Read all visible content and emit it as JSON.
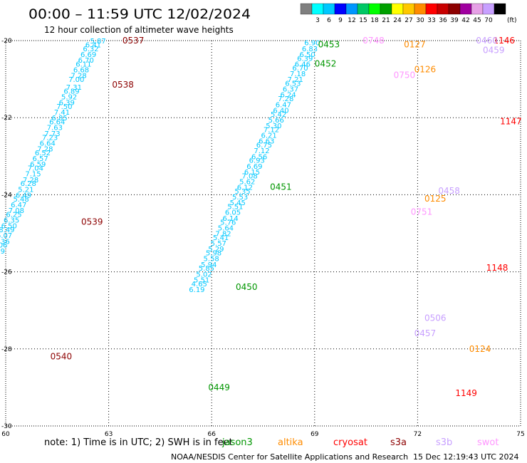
{
  "header": {
    "title": "00:00 – 11:59 UTC 12/02/2024",
    "subtitle": "12 hour collection of altimeter wave heights"
  },
  "colorbar": {
    "unit": "(ft)",
    "entries": [
      {
        "label": "",
        "color": "#7f7f7f"
      },
      {
        "label": "3",
        "color": "#00ffff"
      },
      {
        "label": "6",
        "color": "#00c8ff"
      },
      {
        "label": "9",
        "color": "#0000ff"
      },
      {
        "label": "12",
        "color": "#0096ff"
      },
      {
        "label": "15",
        "color": "#00c864"
      },
      {
        "label": "18",
        "color": "#00ff00"
      },
      {
        "label": "21",
        "color": "#00a000"
      },
      {
        "label": "24",
        "color": "#ffff00"
      },
      {
        "label": "27",
        "color": "#ffc800"
      },
      {
        "label": "30",
        "color": "#ff8c00"
      },
      {
        "label": "33",
        "color": "#ff0000"
      },
      {
        "label": "36",
        "color": "#c80000"
      },
      {
        "label": "39",
        "color": "#8c0000"
      },
      {
        "label": "42",
        "color": "#a000a0"
      },
      {
        "label": "45",
        "color": "#e6a0e6"
      },
      {
        "label": "70",
        "color": "#c8a0ff"
      },
      {
        "label": "",
        "color": "#000000"
      }
    ]
  },
  "footer": {
    "note": "note:  1) Time is in UTC; 2) SWH is in feet",
    "credit": "NOAA/NESDIS Center for Satellite Applications and Research",
    "timestamp": "15 Dec 12:19:43 UTC 2024",
    "satellites": [
      {
        "name": "jason3",
        "color": "#009600"
      },
      {
        "name": "altika",
        "color": "#ff8c00"
      },
      {
        "name": "cryosat",
        "color": "#ff0000"
      },
      {
        "name": "s3a",
        "color": "#8c0000"
      },
      {
        "name": "s3b",
        "color": "#c8a0ff"
      },
      {
        "name": "swot",
        "color": "#ff96ff"
      }
    ]
  },
  "chart_data": {
    "type": "scatter",
    "xlim": [
      60,
      75
    ],
    "ylim": [
      -30,
      -20
    ],
    "xticks": [
      60,
      63,
      66,
      69,
      72,
      75
    ],
    "xtick_labels": [
      "60",
      "63",
      "66",
      "69",
      "72",
      "75"
    ],
    "yticks": [
      -20,
      -22,
      -24,
      -26,
      -28,
      -30
    ],
    "ytick_labels": [
      "-20",
      "-22",
      "-24",
      "-26",
      "-28",
      "-30"
    ],
    "grid": true,
    "pass_labels": [
      {
        "text": "0537",
        "x": 63.4,
        "y": -20.0,
        "color": "#8c0000"
      },
      {
        "text": "0538",
        "x": 63.1,
        "y": -21.15,
        "color": "#8c0000"
      },
      {
        "text": "0539",
        "x": 62.2,
        "y": -24.7,
        "color": "#8c0000"
      },
      {
        "text": "0540",
        "x": 61.3,
        "y": -28.2,
        "color": "#8c0000"
      },
      {
        "text": "0449",
        "x": 65.9,
        "y": -29.0,
        "color": "#009600"
      },
      {
        "text": "0450",
        "x": 66.7,
        "y": -26.4,
        "color": "#009600"
      },
      {
        "text": "0451",
        "x": 67.7,
        "y": -23.8,
        "color": "#009600"
      },
      {
        "text": "0452",
        "x": 69.0,
        "y": -20.6,
        "color": "#009600"
      },
      {
        "text": "0453",
        "x": 69.1,
        "y": -20.1,
        "color": "#009600"
      },
      {
        "text": "0127",
        "x": 71.6,
        "y": -20.1,
        "color": "#ff8c00"
      },
      {
        "text": "0126",
        "x": 71.9,
        "y": -20.75,
        "color": "#ff8c00"
      },
      {
        "text": "0125",
        "x": 72.2,
        "y": -24.1,
        "color": "#ff8c00"
      },
      {
        "text": "0124",
        "x": 73.5,
        "y": -28.0,
        "color": "#ff8c00"
      },
      {
        "text": "1146",
        "x": 74.2,
        "y": -20.0,
        "color": "#ff0000"
      },
      {
        "text": "1147",
        "x": 74.4,
        "y": -22.1,
        "color": "#ff0000"
      },
      {
        "text": "1148",
        "x": 74.0,
        "y": -25.9,
        "color": "#ff0000"
      },
      {
        "text": "1149",
        "x": 73.1,
        "y": -29.15,
        "color": "#ff0000"
      },
      {
        "text": "0460",
        "x": 73.7,
        "y": -20.0,
        "color": "#c8a0ff"
      },
      {
        "text": "0459",
        "x": 73.9,
        "y": -20.25,
        "color": "#c8a0ff"
      },
      {
        "text": "0458",
        "x": 72.6,
        "y": -23.9,
        "color": "#c8a0ff"
      },
      {
        "text": "0457",
        "x": 71.9,
        "y": -27.6,
        "color": "#c8a0ff"
      },
      {
        "text": "0748",
        "x": 70.4,
        "y": -20.0,
        "color": "#ff96ff"
      },
      {
        "text": "0750",
        "x": 71.3,
        "y": -20.9,
        "color": "#ff96ff"
      },
      {
        "text": "0751",
        "x": 71.8,
        "y": -24.45,
        "color": "#ff96ff"
      },
      {
        "text": "0506",
        "x": 72.2,
        "y": -27.2,
        "color": "#c8a0ff"
      }
    ],
    "tracks": [
      {
        "name": "s3a track (0537-0540)",
        "color": "#00c8ff",
        "points": [
          [
            62.92,
            -20.0,
            "5.87"
          ],
          [
            62.78,
            -20.1,
            "6.41"
          ],
          [
            62.71,
            -20.2,
            "6.32"
          ],
          [
            62.64,
            -20.35,
            "6.69"
          ],
          [
            62.57,
            -20.5,
            "6.70"
          ],
          [
            62.5,
            -20.6,
            "6.11"
          ],
          [
            62.43,
            -20.75,
            "6.68"
          ],
          [
            62.36,
            -20.9,
            "7.28"
          ],
          [
            62.29,
            -21.0,
            "7.00"
          ],
          [
            62.22,
            -21.2,
            "7.31"
          ],
          [
            62.15,
            -21.3,
            "6.89"
          ],
          [
            62.08,
            -21.45,
            "5.92"
          ],
          [
            62.01,
            -21.6,
            "6.39"
          ],
          [
            61.94,
            -21.7,
            "7.50"
          ],
          [
            61.87,
            -21.85,
            "7.41"
          ],
          [
            61.8,
            -22.0,
            "6.85"
          ],
          [
            61.73,
            -22.1,
            "6.64"
          ],
          [
            61.66,
            -22.25,
            "7.63"
          ],
          [
            61.59,
            -22.4,
            "7.73"
          ],
          [
            61.52,
            -22.5,
            "7.23"
          ],
          [
            61.45,
            -22.65,
            "6.64"
          ],
          [
            61.38,
            -22.8,
            "7.28"
          ],
          [
            61.31,
            -22.9,
            "6.52"
          ],
          [
            61.24,
            -23.05,
            "6.57"
          ],
          [
            61.17,
            -23.2,
            "6.59"
          ],
          [
            61.1,
            -23.3,
            "7.04"
          ],
          [
            61.03,
            -23.45,
            "7.15"
          ],
          [
            60.96,
            -23.6,
            "7.28"
          ],
          [
            60.89,
            -23.7,
            "6.28"
          ],
          [
            60.82,
            -23.85,
            "5.21"
          ],
          [
            60.75,
            -24.0,
            "6.49"
          ],
          [
            60.68,
            -24.1,
            "5.48"
          ],
          [
            60.61,
            -24.25,
            "6.47"
          ],
          [
            60.54,
            -24.4,
            "7.08"
          ],
          [
            60.47,
            -24.5,
            "6.25"
          ],
          [
            60.4,
            -24.65,
            "6.35"
          ],
          [
            60.33,
            -24.8,
            "6.50"
          ],
          [
            60.26,
            -24.9,
            "8.49"
          ],
          [
            60.19,
            -25.05,
            "6.07"
          ],
          [
            60.12,
            -25.2,
            "6.36"
          ],
          [
            60.05,
            -25.3,
            "7.06"
          ],
          [
            59.98,
            -25.45,
            "6.79"
          ]
        ]
      },
      {
        "name": "jason3 track (0449-0453)",
        "color": "#00c8ff",
        "points": [
          [
            69.16,
            -20.05,
            "6.90"
          ],
          [
            69.09,
            -20.2,
            "6.83"
          ],
          [
            69.02,
            -20.35,
            "6.50"
          ],
          [
            68.95,
            -20.45,
            "6.39"
          ],
          [
            68.88,
            -20.6,
            "6.46"
          ],
          [
            68.81,
            -20.7,
            "6.70"
          ],
          [
            68.74,
            -20.85,
            "7.18"
          ],
          [
            68.67,
            -21.0,
            "7.21"
          ],
          [
            68.6,
            -21.1,
            "6.53"
          ],
          [
            68.53,
            -21.25,
            "6.37"
          ],
          [
            68.46,
            -21.4,
            "6.24"
          ],
          [
            68.39,
            -21.5,
            "7.28"
          ],
          [
            68.32,
            -21.65,
            "6.47"
          ],
          [
            68.25,
            -21.8,
            "6.40"
          ],
          [
            68.18,
            -21.9,
            "5.42"
          ],
          [
            68.11,
            -22.05,
            "5.66"
          ],
          [
            68.04,
            -22.2,
            "5.30"
          ],
          [
            67.97,
            -22.3,
            "7.12"
          ],
          [
            67.9,
            -22.45,
            "6.21"
          ],
          [
            67.83,
            -22.6,
            "6.63"
          ],
          [
            67.76,
            -22.7,
            "6.75"
          ],
          [
            67.69,
            -22.85,
            "7.12"
          ],
          [
            67.62,
            -23.0,
            "6.56"
          ],
          [
            67.55,
            -23.1,
            "6.93"
          ],
          [
            67.48,
            -23.25,
            "6.69"
          ],
          [
            67.41,
            -23.4,
            "6.15"
          ],
          [
            67.34,
            -23.5,
            "7.08"
          ],
          [
            67.27,
            -23.65,
            "5.62"
          ],
          [
            67.2,
            -23.8,
            "6.12"
          ],
          [
            67.13,
            -23.9,
            "5.35"
          ],
          [
            67.06,
            -24.05,
            "5.53"
          ],
          [
            66.99,
            -24.2,
            "5.45"
          ],
          [
            66.92,
            -24.3,
            "5.51"
          ],
          [
            66.85,
            -24.45,
            "6.05"
          ],
          [
            66.78,
            -24.6,
            "6.14"
          ],
          [
            66.71,
            -24.7,
            "5.76"
          ],
          [
            66.64,
            -24.85,
            "5.64"
          ],
          [
            66.57,
            -25.0,
            "7.82"
          ],
          [
            66.5,
            -25.1,
            "5.41"
          ],
          [
            66.43,
            -25.25,
            "5.57"
          ],
          [
            66.36,
            -25.4,
            "5.29"
          ],
          [
            66.29,
            -25.5,
            "5.98"
          ],
          [
            66.22,
            -25.65,
            "5.58"
          ],
          [
            66.15,
            -25.8,
            "5.94"
          ],
          [
            66.08,
            -25.9,
            "5.85"
          ],
          [
            66.01,
            -26.05,
            "5.02"
          ],
          [
            65.94,
            -26.2,
            "5.51"
          ],
          [
            65.87,
            -26.3,
            "4.65"
          ],
          [
            65.8,
            -26.45,
            "6.19"
          ]
        ]
      }
    ]
  }
}
